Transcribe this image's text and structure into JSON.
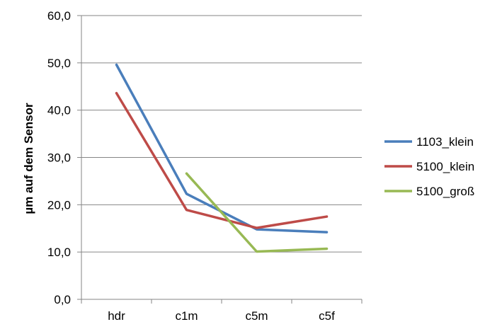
{
  "chart_data": {
    "type": "line",
    "categories": [
      "hdr",
      "c1m",
      "c5m",
      "c5f"
    ],
    "ylabel": "µm auf dem Sensor",
    "ylim": [
      0,
      60
    ],
    "yticks": [
      "0,0",
      "10,0",
      "20,0",
      "30,0",
      "40,0",
      "50,0",
      "60,0"
    ],
    "grid": true,
    "legend_position": "right",
    "series": [
      {
        "name": "1103_klein",
        "color": "#4a7ebb",
        "values": [
          49.6,
          22.3,
          14.8,
          14.2
        ]
      },
      {
        "name": "5100_klein",
        "color": "#be4b48",
        "values": [
          43.6,
          18.9,
          15.1,
          17.5
        ]
      },
      {
        "name": "5100_groß",
        "color": "#98b954",
        "values": [
          null,
          26.6,
          10.1,
          10.7
        ]
      }
    ]
  }
}
